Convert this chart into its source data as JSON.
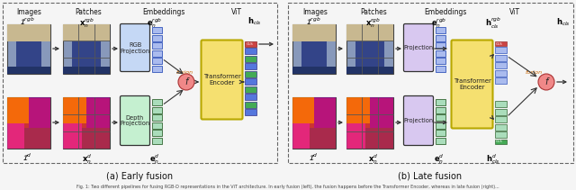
{
  "title_left": "(a) Early fusion",
  "title_right": "(b) Late fusion",
  "caption": "Fig. 1: Two different pipelines for fusing RGB-D representations in the ViT architecture. In early fusion (left), the fusion happens before the Transformer Encoder, whereas in late fusion (right)...",
  "bg_color": "#f5f5f5",
  "dashed_border_color": "#666666",
  "rgb_proj_color": "#c5d8f5",
  "depth_proj_color": "#c5f0d0",
  "proj_color_right": "#d8c8f0",
  "transformer_color": "#f5e070",
  "transformer_edge": "#b8a800",
  "fusion_circle_color": "#f08888",
  "embed_rgb_color": "#aabbee",
  "embed_depth_color": "#aaddbb",
  "out_blue": "#5577dd",
  "out_green": "#44aa55",
  "cls_color": "#cc4444",
  "cls_green": "#44aa55",
  "arrow_color": "#333333",
  "text_color": "#111111",
  "label_color": "#cc6600"
}
